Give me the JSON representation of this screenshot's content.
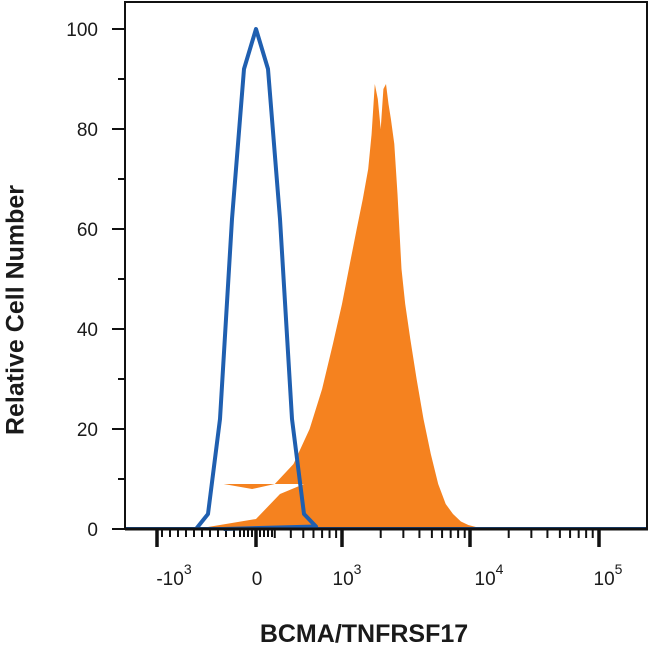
{
  "chart_data": {
    "type": "area",
    "xlabel": "BCMA/TNFRSF17",
    "ylabel": "Relative Cell Number",
    "xscale": "biexponential",
    "yscale": "linear",
    "ylim": [
      0,
      100
    ],
    "yticks": [
      0,
      20,
      40,
      60,
      80,
      100
    ],
    "xtick_labels": [
      {
        "base": "-10",
        "exp": "3"
      },
      {
        "base": "0",
        "exp": ""
      },
      {
        "base": "10",
        "exp": "3"
      },
      {
        "base": "10",
        "exp": "4"
      },
      {
        "base": "10",
        "exp": "5"
      }
    ],
    "grid": false,
    "series": [
      {
        "color": "#f5821f",
        "style": "filled",
        "x": [
          -100,
          0,
          40,
          80,
          120,
          200,
          300,
          420,
          560,
          700,
          850,
          1000,
          1150,
          1300,
          1450,
          1600,
          1700,
          1800,
          1900,
          2000,
          2100,
          2200,
          2300,
          2400,
          2550,
          2700,
          2900,
          3100,
          3400,
          3800,
          4300,
          4900,
          5600,
          6400,
          7300,
          8400,
          9600,
          11000,
          12500,
          14000
        ],
        "y": [
          0,
          2,
          7,
          9,
          9,
          8,
          9,
          13,
          20,
          28,
          37,
          45,
          53,
          60,
          66,
          72,
          79,
          89,
          86,
          80,
          88,
          89,
          85,
          82,
          77,
          67,
          52,
          45,
          38,
          30,
          22,
          15,
          9,
          5,
          3,
          1.5,
          0.8,
          0.4,
          0.2,
          0
        ]
      },
      {
        "color": "#1f5fb0",
        "style": "line",
        "x": [
          -100,
          -80,
          -60,
          -40,
          -20,
          0,
          20,
          40,
          60,
          80,
          100,
          120
        ],
        "y": [
          0,
          3,
          22,
          62,
          92,
          100,
          92,
          62,
          22,
          3,
          0.5,
          0
        ]
      }
    ]
  }
}
